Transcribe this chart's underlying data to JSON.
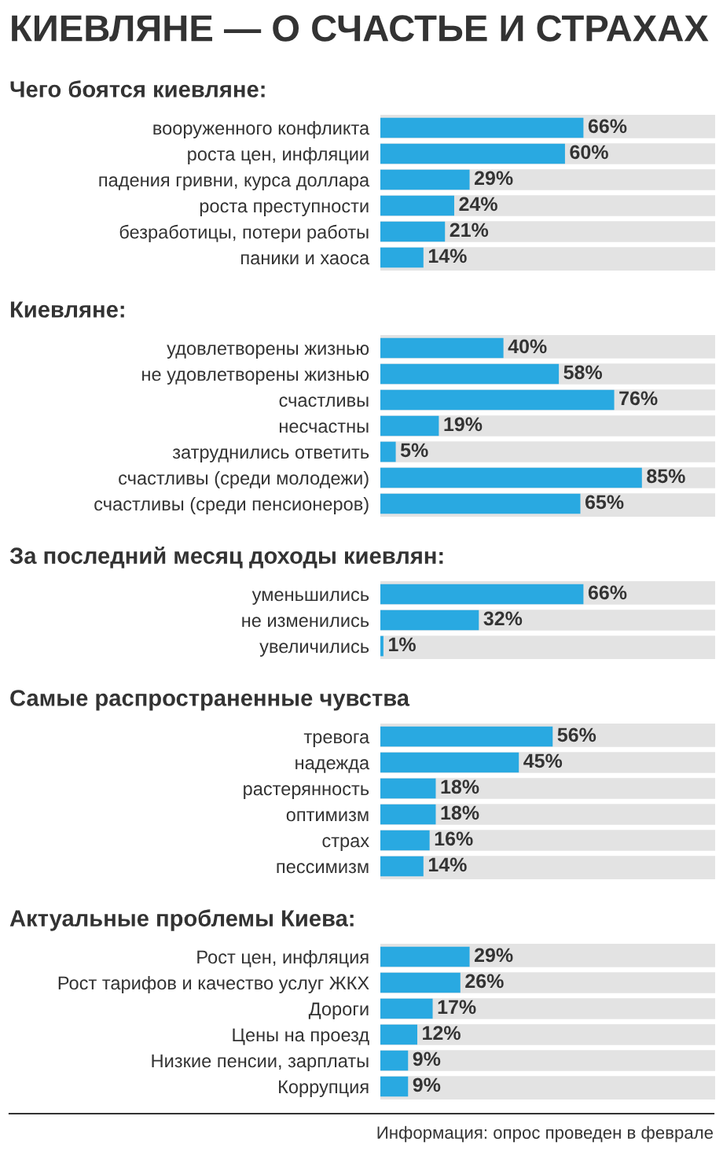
{
  "chart_data": [
    {
      "type": "bar",
      "orientation": "horizontal",
      "title": "КИЕВЛЯНЕ — О СЧАСТЬЕ И СТРАХАХ",
      "subtitle": "Чего боятся киевляне:",
      "categories": [
        "вооруженного конфликта",
        "роста цен, инфляции",
        "падения гривни, курса доллара",
        "роста преступности",
        "безработицы, потери работы",
        "паники и хаоса"
      ],
      "values": [
        66,
        60,
        29,
        24,
        21,
        14
      ],
      "value_labels": [
        "66%",
        "60%",
        "29%",
        "24%",
        "21%",
        "14%"
      ],
      "color": "#29a9e1",
      "grid": false,
      "legend": false
    },
    {
      "type": "bar",
      "orientation": "horizontal",
      "title": "Киевляне:",
      "categories": [
        "удовлетворены жизнью",
        "не удовлетворены жизнью",
        "счастливы",
        "несчастны",
        "затруднились ответить",
        "счастливы (среди молодежи)",
        "счастливы (среди пенсионеров)"
      ],
      "values": [
        40,
        58,
        76,
        19,
        5,
        85,
        65
      ],
      "value_labels": [
        "40%",
        "58%",
        "76%",
        "19%",
        "5%",
        "85%",
        "65%"
      ],
      "color": "#29a9e1",
      "grid": false,
      "legend": false
    },
    {
      "type": "bar",
      "orientation": "horizontal",
      "title": "За последний месяц доходы киевлян:",
      "categories": [
        "уменьшились",
        "не изменились",
        "увеличились"
      ],
      "values": [
        66,
        32,
        1
      ],
      "value_labels": [
        "66%",
        "32%",
        "1%"
      ],
      "color": "#29a9e1",
      "grid": false,
      "legend": false
    },
    {
      "type": "bar",
      "orientation": "horizontal",
      "title": "Самые распространенные чувства",
      "categories": [
        "тревога",
        "надежда",
        "растерянность",
        "оптимизм",
        "страх",
        "пессимизм"
      ],
      "values": [
        56,
        45,
        18,
        18,
        16,
        14
      ],
      "value_labels": [
        "56%",
        "45%",
        "18%",
        "18%",
        "16%",
        "14%"
      ],
      "color": "#29a9e1",
      "grid": false,
      "legend": false
    },
    {
      "type": "bar",
      "orientation": "horizontal",
      "title": "Актуальные проблемы Киева:",
      "categories": [
        "Рост цен, инфляция",
        "Рост тарифов и качество услуг ЖКХ",
        "Дороги",
        "Цены на проезд",
        "Низкие пенсии, зарплаты",
        "Коррупция"
      ],
      "values": [
        29,
        26,
        17,
        12,
        9,
        9
      ],
      "value_labels": [
        "29%",
        "26%",
        "17%",
        "12%",
        "9%",
        "9%"
      ],
      "color": "#29a9e1",
      "grid": false,
      "legend": false,
      "annotations": [
        "Информация: опрос проведен в феврале"
      ]
    }
  ]
}
